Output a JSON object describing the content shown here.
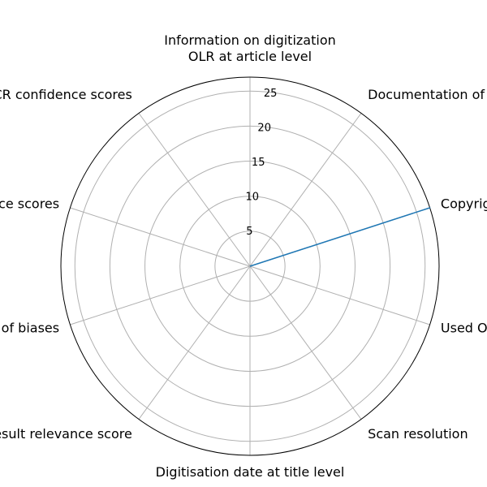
{
  "chart_data": {
    "type": "radar",
    "title": "",
    "categories": [
      "Information on digitization\nOLR at article level",
      "Documentation of scan methods",
      "Copyright notice",
      "Used OCR tool",
      "Scan resolution",
      "Digitisation date at title level",
      "Search result relevance score",
      "Documentation of biases",
      "OCR confidence scores",
      "OCR confidence scores"
    ],
    "rlim": [
      0,
      27
    ],
    "rticks": [
      5,
      10,
      15,
      20,
      25
    ],
    "rtick_labels": [
      "5",
      "10",
      "15",
      "20",
      "25"
    ],
    "grid": true,
    "series": [
      {
        "name": "",
        "color": "#1f77b4",
        "values": [
          0,
          0,
          27,
          0,
          0,
          0,
          0,
          0,
          0,
          0
        ]
      }
    ]
  }
}
